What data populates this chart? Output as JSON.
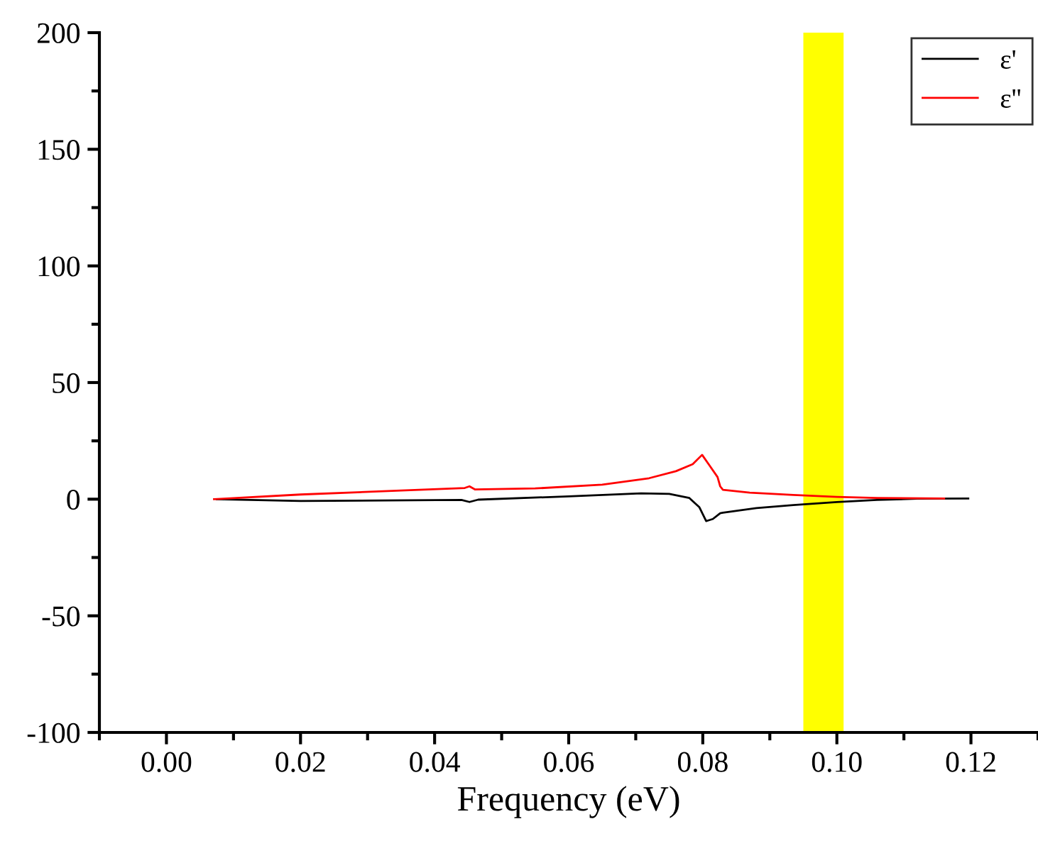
{
  "chart_data": {
    "type": "line",
    "xlabel": "Frequency (eV)",
    "xlim": [
      -0.01,
      0.13
    ],
    "ylim": [
      -100,
      200
    ],
    "xticks": [
      {
        "value": 0,
        "label": "0.00"
      },
      {
        "value": 0.02,
        "label": "0.02"
      },
      {
        "value": 0.04,
        "label": "0.04"
      },
      {
        "value": 0.06,
        "label": "0.06"
      },
      {
        "value": 0.08,
        "label": "0.08"
      },
      {
        "value": 0.1,
        "label": "0.10"
      },
      {
        "value": 0.12,
        "label": "0.12"
      }
    ],
    "yticks": [
      -100,
      -50,
      0,
      50,
      100,
      150,
      200
    ],
    "legend": "top right",
    "grid": false,
    "bands": [
      {
        "axis": "x",
        "from": 0.095,
        "to": 0.101,
        "color": "#ffff00"
      }
    ],
    "series": [
      {
        "name": "ε'",
        "color": "#000000",
        "x": [
          0.0075,
          0.02,
          0.044,
          0.0452,
          0.0465,
          0.06,
          0.0708,
          0.075,
          0.078,
          0.0795,
          0.0805,
          0.0815,
          0.0826,
          0.083,
          0.088,
          0.0935,
          0.1,
          0.106,
          0.112,
          0.1196
        ],
        "values": [
          0,
          -0.8,
          -0.3,
          -1.2,
          -0.2,
          1.2,
          2.5,
          2.3,
          0.5,
          -3.5,
          -9.4,
          -8.5,
          -6,
          -5.8,
          -3.8,
          -2.5,
          -1.2,
          -0.3,
          0.2,
          0.3
        ]
      },
      {
        "name": "ε''",
        "color": "#ff0000",
        "x": [
          0.0071,
          0.02,
          0.035,
          0.0445,
          0.0452,
          0.046,
          0.055,
          0.065,
          0.072,
          0.076,
          0.0785,
          0.0799,
          0.081,
          0.0822,
          0.0826,
          0.083,
          0.087,
          0.0935,
          0.1,
          0.106,
          0.116
        ],
        "values": [
          0,
          2,
          3.7,
          4.8,
          5.5,
          4.2,
          4.6,
          6.2,
          9,
          12,
          15,
          19,
          14.5,
          9.5,
          5.5,
          4,
          2.8,
          1.8,
          1,
          0.5,
          0.3
        ]
      }
    ]
  }
}
